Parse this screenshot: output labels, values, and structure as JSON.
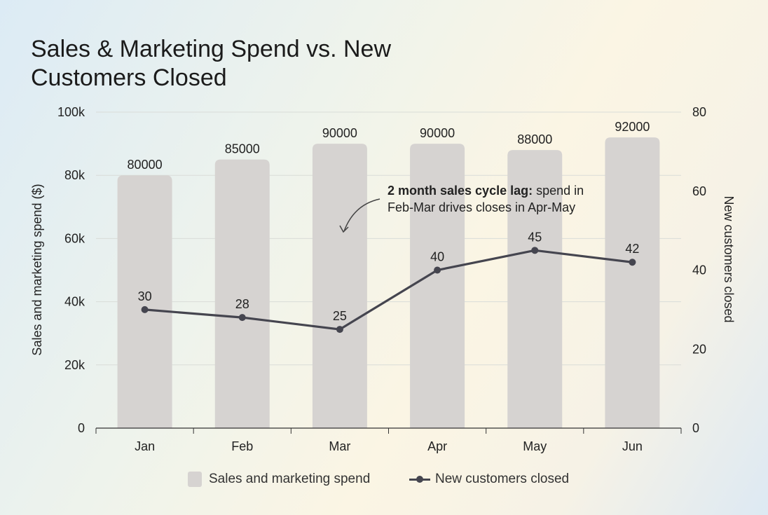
{
  "chart_data": {
    "type": "bar+line",
    "title": "Sales & Marketing Spend vs. New Customers Closed",
    "categories": [
      "Jan",
      "Feb",
      "Mar",
      "Apr",
      "May",
      "Jun"
    ],
    "series": [
      {
        "name": "Sales and marketing spend",
        "type": "bar",
        "axis": "left",
        "values": [
          80000,
          85000,
          90000,
          90000,
          88000,
          92000
        ],
        "labels": [
          "80000",
          "85000",
          "90000",
          "90000",
          "88000",
          "92000"
        ],
        "color": "#d6d3d1"
      },
      {
        "name": "New customers closed",
        "type": "line",
        "axis": "right",
        "values": [
          30,
          28,
          25,
          40,
          45,
          42
        ],
        "labels": [
          "30",
          "28",
          "25",
          "40",
          "45",
          "42"
        ],
        "color": "#45454f"
      }
    ],
    "ylabel_left": "Sales and marketing spend ($)",
    "ylabel_right": "New customers closed",
    "ylim_left": [
      0,
      100000
    ],
    "ylim_right": [
      0,
      80
    ],
    "yticks_left": [
      "0",
      "20k",
      "40k",
      "60k",
      "80k",
      "100k"
    ],
    "yticks_right": [
      "0",
      "20",
      "40",
      "60",
      "80"
    ],
    "grid": true,
    "legend": "bottom",
    "annotation": {
      "bold": "2 month sales cycle lag:",
      "text": " spend in",
      "line2": "Feb-Mar drives closes in Apr-May"
    }
  }
}
